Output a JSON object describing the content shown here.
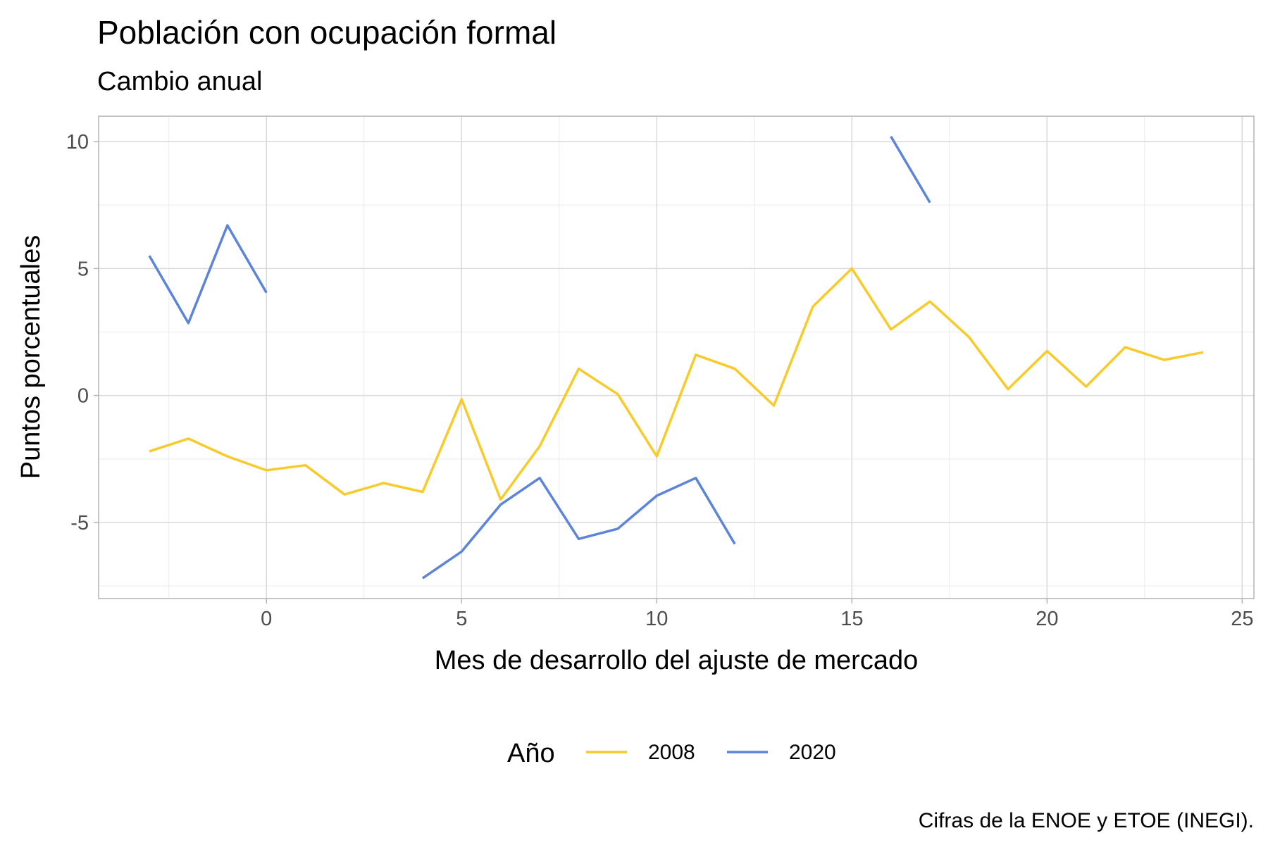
{
  "chart_data": {
    "type": "line",
    "title": "Población con ocupación formal",
    "subtitle": "Cambio anual",
    "xlabel": "Mes de desarrollo del ajuste de mercado",
    "ylabel": "Puntos porcentuales",
    "caption": "Cifras de la ENOE y ETOE (INEGI).",
    "xlim": [
      -4.3,
      25.3
    ],
    "ylim": [
      -8,
      11
    ],
    "x_ticks": [
      0,
      5,
      10,
      15,
      20,
      25
    ],
    "y_ticks": [
      -5,
      0,
      5,
      10
    ],
    "x_tick_labels": [
      "0",
      "5",
      "10",
      "15",
      "20",
      "25"
    ],
    "y_tick_labels": [
      "-5",
      "0",
      "5",
      "10"
    ],
    "grid": true,
    "legend": {
      "title": "Año",
      "position": "bottom"
    },
    "series": [
      {
        "name": "2008",
        "color": "#F9CB2A",
        "segments": [
          [
            [
              -3,
              -2.2
            ],
            [
              -2,
              -1.7
            ],
            [
              -1,
              -2.4
            ],
            [
              0,
              -2.95
            ],
            [
              1,
              -2.75
            ],
            [
              2,
              -3.9
            ],
            [
              3,
              -3.45
            ],
            [
              4,
              -3.8
            ],
            [
              5,
              -0.15
            ],
            [
              6,
              -4.1
            ],
            [
              7,
              -2.0
            ],
            [
              8,
              1.05
            ],
            [
              9,
              0.05
            ],
            [
              10,
              -2.4
            ],
            [
              11,
              1.6
            ],
            [
              12,
              1.05
            ],
            [
              13,
              -0.4
            ],
            [
              14,
              3.5
            ],
            [
              15,
              5.0
            ],
            [
              16,
              2.6
            ],
            [
              17,
              3.7
            ],
            [
              18,
              2.3
            ],
            [
              19,
              0.25
            ],
            [
              20,
              1.75
            ],
            [
              21,
              0.35
            ],
            [
              22,
              1.9
            ],
            [
              23,
              1.4
            ],
            [
              24,
              1.7
            ]
          ]
        ]
      },
      {
        "name": "2020",
        "color": "#5B84DA",
        "segments": [
          [
            [
              -3,
              5.5
            ],
            [
              -2,
              2.85
            ],
            [
              -1,
              6.7
            ],
            [
              0,
              4.05
            ]
          ],
          [
            [
              4,
              -7.2
            ],
            [
              5,
              -6.15
            ],
            [
              6,
              -4.3
            ],
            [
              7,
              -3.25
            ],
            [
              8,
              -5.65
            ],
            [
              9,
              -5.25
            ],
            [
              10,
              -3.95
            ],
            [
              11,
              -3.25
            ],
            [
              12,
              -5.85
            ]
          ],
          [
            [
              16,
              10.2
            ],
            [
              17,
              7.6
            ]
          ]
        ]
      }
    ]
  }
}
